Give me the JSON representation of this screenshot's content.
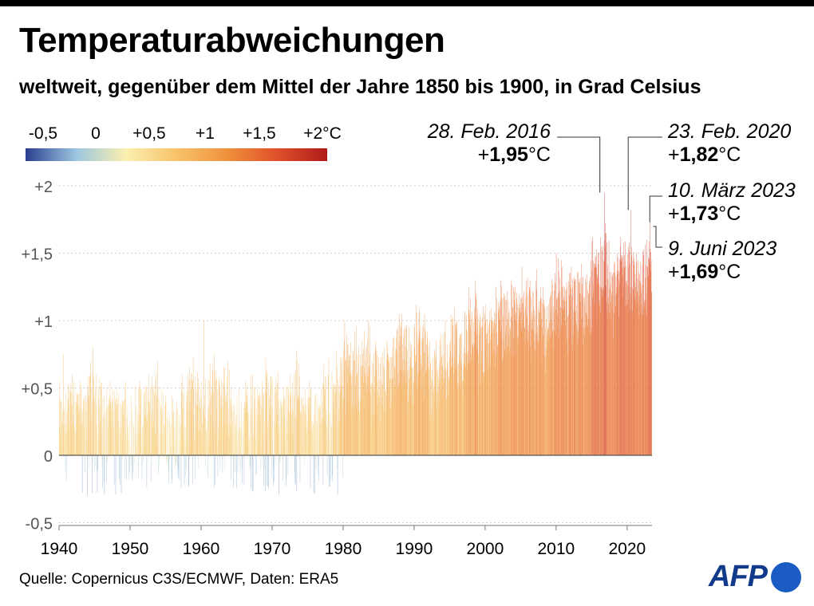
{
  "title": "Temperaturabweichungen",
  "subtitle": "weltweit, gegenüber dem Mittel der Jahre 1850 bis 1900, in Grad Celsius",
  "source": "Quelle: Copernicus C3S/ECMWF, Daten: ERA5",
  "logo": "AFP",
  "legend": {
    "labels": [
      "-0,5",
      "0",
      "+0,5",
      "+1",
      "+1,5",
      "+2°C"
    ],
    "values": [
      -0.5,
      0,
      0.5,
      1,
      1.5,
      2
    ],
    "colors": [
      "#2a3f8f",
      "#9cc6e0",
      "#fbf0b0",
      "#f7c36a",
      "#f0923c",
      "#e0502a",
      "#b01a1a"
    ]
  },
  "annotations": [
    {
      "date": "28. Feb. 2016",
      "prefix": "+",
      "value": "1,95",
      "unit": "°C"
    },
    {
      "date": "23. Feb. 2020",
      "prefix": "+",
      "value": "1,82",
      "unit": "°C"
    },
    {
      "date": "10. März 2023",
      "prefix": "+",
      "value": "1,73",
      "unit": "°C"
    },
    {
      "date": "9. Juni 2023",
      "prefix": "+",
      "value": "1,69",
      "unit": "°C"
    }
  ],
  "chart_data": {
    "type": "bar",
    "title": "Temperaturabweichungen",
    "subtitle": "weltweit, gegenüber dem Mittel der Jahre 1850 bis 1900, in Grad Celsius",
    "xlabel": "",
    "ylabel": "",
    "xlim": [
      1940,
      2023.5
    ],
    "ylim": [
      -0.5,
      2.0
    ],
    "x_ticks": [
      1940,
      1950,
      1960,
      1970,
      1980,
      1990,
      2000,
      2010,
      2020
    ],
    "x_tick_labels": [
      "1940",
      "1950",
      "1960",
      "1970",
      "1980",
      "1990",
      "2000",
      "2010",
      "2020"
    ],
    "y_ticks": [
      -0.5,
      0,
      0.5,
      1,
      1.5,
      2
    ],
    "y_tick_labels": [
      "-0,5",
      "0",
      "+0,5",
      "+1",
      "+1,5",
      "+2"
    ],
    "grid": true,
    "series": [
      {
        "x": [
          1940,
          1941,
          1942,
          1943,
          1944,
          1945,
          1946,
          1947,
          1948,
          1949,
          1950,
          1951,
          1952,
          1953,
          1954,
          1955,
          1956,
          1957,
          1958,
          1959,
          1960,
          1961,
          1962,
          1963,
          1964,
          1965,
          1966,
          1967,
          1968,
          1969,
          1970,
          1971,
          1972,
          1973,
          1974,
          1975,
          1976,
          1977,
          1978,
          1979,
          1980,
          1981,
          1982,
          1983,
          1984,
          1985,
          1986,
          1987,
          1988,
          1989,
          1990,
          1991,
          1992,
          1993,
          1994,
          1995,
          1996,
          1997,
          1998,
          1999,
          2000,
          2001,
          2002,
          2003,
          2004,
          2005,
          2006,
          2007,
          2008,
          2009,
          2010,
          2011,
          2012,
          2013,
          2014,
          2015,
          2016,
          2017,
          2018,
          2019,
          2020,
          2021,
          2022,
          2023
        ],
        "mean": [
          0.3,
          0.35,
          0.32,
          0.3,
          0.4,
          0.35,
          0.25,
          0.3,
          0.28,
          0.26,
          0.2,
          0.3,
          0.32,
          0.35,
          0.22,
          0.2,
          0.15,
          0.3,
          0.4,
          0.35,
          0.33,
          0.4,
          0.38,
          0.4,
          0.2,
          0.22,
          0.32,
          0.3,
          0.28,
          0.4,
          0.35,
          0.25,
          0.35,
          0.45,
          0.25,
          0.28,
          0.2,
          0.4,
          0.35,
          0.5,
          0.6,
          0.62,
          0.5,
          0.7,
          0.52,
          0.5,
          0.58,
          0.72,
          0.75,
          0.6,
          0.8,
          0.75,
          0.55,
          0.6,
          0.68,
          0.82,
          0.72,
          0.9,
          1.02,
          0.8,
          0.82,
          0.95,
          1.02,
          1.03,
          0.98,
          1.1,
          1.05,
          1.05,
          0.95,
          1.1,
          1.18,
          1.05,
          1.1,
          1.12,
          1.15,
          1.3,
          1.38,
          1.3,
          1.22,
          1.35,
          1.36,
          1.25,
          1.3,
          1.45
        ],
        "max": [
          0.75,
          0.6,
          0.55,
          0.55,
          0.8,
          0.6,
          0.5,
          0.55,
          0.5,
          0.55,
          0.52,
          0.55,
          0.6,
          0.7,
          0.5,
          0.45,
          0.4,
          0.6,
          0.72,
          0.62,
          1.0,
          0.75,
          0.62,
          0.7,
          0.5,
          0.5,
          0.6,
          0.6,
          0.55,
          0.72,
          0.62,
          0.5,
          0.6,
          0.78,
          0.5,
          0.55,
          0.5,
          0.72,
          0.62,
          0.78,
          1.0,
          0.95,
          0.85,
          1.0,
          0.85,
          0.8,
          0.85,
          1.05,
          1.05,
          0.95,
          1.12,
          1.05,
          0.85,
          0.9,
          1.0,
          1.1,
          1.0,
          1.25,
          1.3,
          1.1,
          1.12,
          1.25,
          1.3,
          1.3,
          1.25,
          1.4,
          1.3,
          1.38,
          1.25,
          1.35,
          1.5,
          1.35,
          1.4,
          1.42,
          1.45,
          1.62,
          1.95,
          1.65,
          1.5,
          1.62,
          1.82,
          1.5,
          1.6,
          1.73
        ]
      }
    ],
    "annotations": [
      {
        "label": "28. Feb. 2016",
        "x": 2016.16,
        "y": 1.95
      },
      {
        "label": "23. Feb. 2020",
        "x": 2020.15,
        "y": 1.82
      },
      {
        "label": "10. März 2023",
        "x": 2023.19,
        "y": 1.73
      },
      {
        "label": "9. Juni 2023",
        "x": 2023.44,
        "y": 1.69
      }
    ]
  }
}
